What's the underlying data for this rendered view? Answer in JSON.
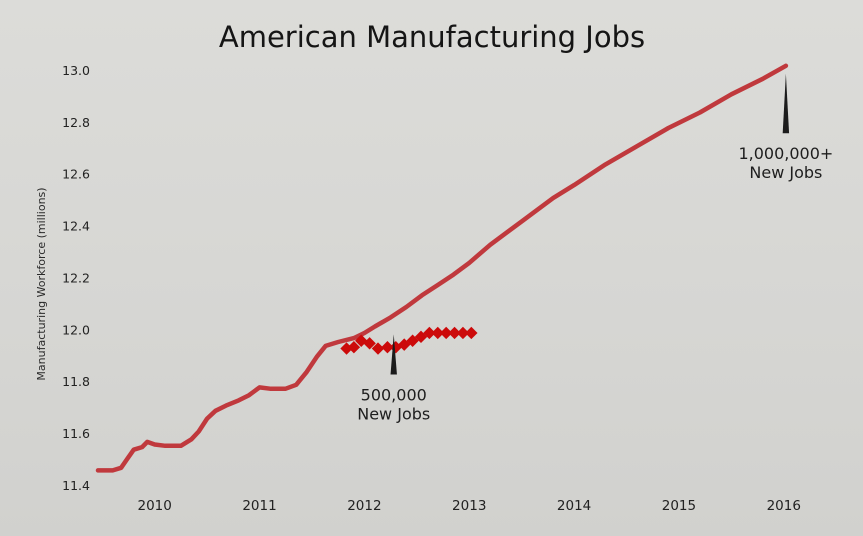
{
  "chart_data": {
    "type": "line",
    "title": "American Manufacturing Jobs",
    "ylabel": "Manufacturing Workforce (millions)",
    "xlabel": "",
    "xlim": [
      2009.45,
      2016.25
    ],
    "ylim": [
      11.4,
      13.05
    ],
    "x_ticks": [
      2010,
      2011,
      2012,
      2013,
      2014,
      2015,
      2016
    ],
    "x_tick_labels": [
      "2010",
      "2011",
      "2012",
      "2013",
      "2014",
      "2015",
      "2016"
    ],
    "y_ticks": [
      11.4,
      11.6,
      11.8,
      12.0,
      12.2,
      12.4,
      12.6,
      12.8,
      13.0
    ],
    "y_tick_labels": [
      "11.4",
      "11.6",
      "11.8",
      "12.0",
      "12.2",
      "12.4",
      "12.6",
      "12.8",
      "13.0"
    ],
    "grid": false,
    "colors": {
      "line": "#c0393d",
      "markers": "#cc0a0a",
      "pointer": "#1c1c1c"
    },
    "series": [
      {
        "style": "line",
        "points": [
          [
            2009.46,
            11.46
          ],
          [
            2009.6,
            11.46
          ],
          [
            2009.68,
            11.47
          ],
          [
            2009.73,
            11.5
          ],
          [
            2009.8,
            11.54
          ],
          [
            2009.88,
            11.55
          ],
          [
            2009.93,
            11.57
          ],
          [
            2010.0,
            11.56
          ],
          [
            2010.1,
            11.555
          ],
          [
            2010.25,
            11.555
          ],
          [
            2010.35,
            11.58
          ],
          [
            2010.42,
            11.61
          ],
          [
            2010.5,
            11.66
          ],
          [
            2010.58,
            11.69
          ],
          [
            2010.68,
            11.71
          ],
          [
            2010.8,
            11.73
          ],
          [
            2010.9,
            11.75
          ],
          [
            2011.0,
            11.78
          ],
          [
            2011.1,
            11.775
          ],
          [
            2011.25,
            11.775
          ],
          [
            2011.35,
            11.79
          ],
          [
            2011.45,
            11.84
          ],
          [
            2011.55,
            11.9
          ],
          [
            2011.63,
            11.94
          ],
          [
            2011.75,
            11.955
          ],
          [
            2011.9,
            11.97
          ],
          [
            2012.0,
            11.99
          ],
          [
            2012.1,
            12.015
          ],
          [
            2012.25,
            12.05
          ],
          [
            2012.4,
            12.09
          ],
          [
            2012.55,
            12.135
          ],
          [
            2012.7,
            12.175
          ],
          [
            2012.85,
            12.215
          ],
          [
            2013.0,
            12.26
          ],
          [
            2013.2,
            12.33
          ],
          [
            2013.5,
            12.42
          ],
          [
            2013.8,
            12.51
          ],
          [
            2014.0,
            12.56
          ],
          [
            2014.3,
            12.64
          ],
          [
            2014.6,
            12.71
          ],
          [
            2014.9,
            12.78
          ],
          [
            2015.2,
            12.84
          ],
          [
            2015.5,
            12.91
          ],
          [
            2015.8,
            12.97
          ],
          [
            2016.02,
            13.02
          ]
        ]
      },
      {
        "style": "markers",
        "marker": "diamond",
        "points": [
          [
            2011.83,
            11.93
          ],
          [
            2011.9,
            11.935
          ],
          [
            2011.97,
            11.96
          ],
          [
            2012.05,
            11.95
          ],
          [
            2012.13,
            11.93
          ],
          [
            2012.22,
            11.935
          ],
          [
            2012.3,
            11.935
          ],
          [
            2012.38,
            11.945
          ],
          [
            2012.46,
            11.96
          ],
          [
            2012.54,
            11.975
          ],
          [
            2012.62,
            11.99
          ],
          [
            2012.7,
            11.99
          ],
          [
            2012.78,
            11.99
          ],
          [
            2012.86,
            11.99
          ],
          [
            2012.94,
            11.99
          ],
          [
            2013.02,
            11.99
          ]
        ]
      }
    ],
    "annotations": [
      {
        "lines": [
          "500,000",
          "New Jobs"
        ],
        "x": 2012.28,
        "y_top": 11.985,
        "y_bottom": 11.83
      },
      {
        "lines": [
          "1,000,000+",
          "New Jobs"
        ],
        "x": 2016.02,
        "y_top": 12.99,
        "y_bottom": 12.76
      }
    ]
  }
}
